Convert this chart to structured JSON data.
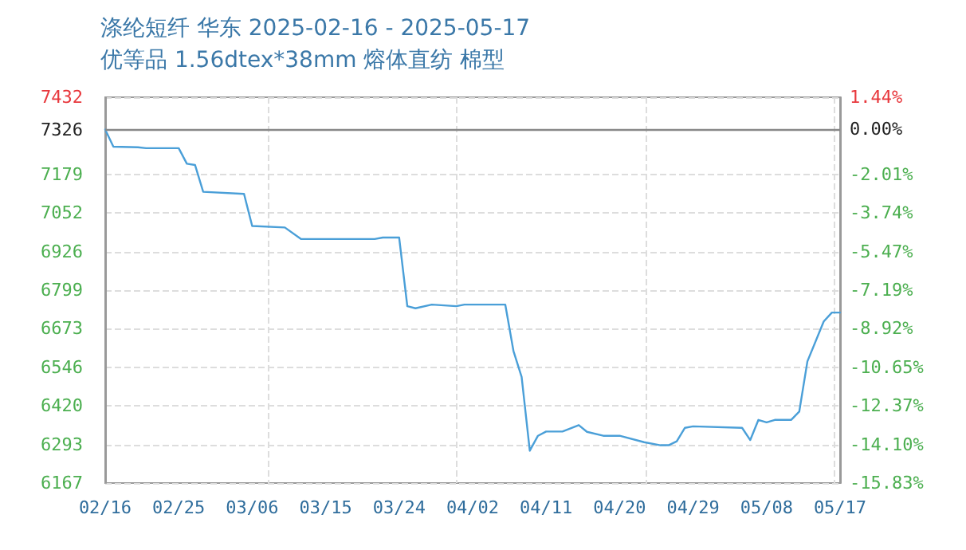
{
  "chart_data": {
    "type": "line",
    "title": "涤纶短纤 华东 2025-02-16 - 2025-05-17",
    "subtitle": "优等品 1.56dtex*38mm 熔体直纺 棉型",
    "x": [
      "--02-16",
      "--02-17",
      "--02-20",
      "--02-21",
      "--02-25",
      "--02-26",
      "--02-27",
      "--02-28",
      "--03-05",
      "--03-06",
      "--03-10",
      "--03-12",
      "--03-21",
      "--03-22",
      "--03-24",
      "--03-25",
      "--03-26",
      "--03-28",
      "--03-31",
      "--04-01",
      "--04-06",
      "--04-07",
      "--04-08",
      "--04-09",
      "--04-10",
      "--04-11",
      "--04-13",
      "--04-15",
      "--04-16",
      "--04-18",
      "--04-20",
      "--04-23",
      "--04-25",
      "--04-26",
      "--04-27",
      "--04-28",
      "--04-29",
      "--05-05",
      "--05-06",
      "--05-07",
      "--05-08",
      "--05-09",
      "--05-11",
      "--05-12",
      "--05-13",
      "--05-15",
      "--05-16",
      "--05-17"
    ],
    "series": [
      {
        "color": "#4a9fd8",
        "values": [
          7326,
          7270,
          7268,
          7265,
          7265,
          7214,
          7210,
          7122,
          7115,
          7010,
          7005,
          6967,
          6967,
          6972,
          6972,
          6747,
          6740,
          6752,
          6747,
          6752,
          6752,
          6600,
          6515,
          6273,
          6322,
          6336,
          6336,
          6357,
          6335,
          6322,
          6322,
          6301,
          6291,
          6291,
          6304,
          6348,
          6353,
          6348,
          6308,
          6374,
          6366,
          6374,
          6374,
          6401,
          6566,
          6697,
          6726,
          6726
        ]
      }
    ],
    "xlim": [
      "--02-16",
      "--05-17"
    ],
    "xticks": [
      {
        "value": "--02-16",
        "label": "02/16"
      },
      {
        "value": "--02-25",
        "label": "02/25"
      },
      {
        "value": "--03-06",
        "label": "03/06"
      },
      {
        "value": "--03-15",
        "label": "03/15"
      },
      {
        "value": "--03-24",
        "label": "03/24"
      },
      {
        "value": "--04-02",
        "label": "04/02"
      },
      {
        "value": "--04-11",
        "label": "04/11"
      },
      {
        "value": "--04-20",
        "label": "04/20"
      },
      {
        "value": "--04-29",
        "label": "04/29"
      },
      {
        "value": "--05-08",
        "label": "05/08"
      },
      {
        "value": "--05-17",
        "label": "05/17"
      }
    ],
    "ylim": [
      6167,
      7432
    ],
    "yticks": [
      6167,
      6293,
      6420,
      6546,
      6673,
      6799,
      6926,
      7052,
      7179,
      7326,
      7432
    ],
    "y2lim": [
      -15.83,
      1.44
    ],
    "y2ticks": [
      {
        "value": -15.83,
        "label": "-15.83%"
      },
      {
        "value": -14.1,
        "label": "-14.10%"
      },
      {
        "value": -12.37,
        "label": "-12.37%"
      },
      {
        "value": -10.65,
        "label": "-10.65%"
      },
      {
        "value": -8.92,
        "label": "-8.92%"
      },
      {
        "value": -7.19,
        "label": "-7.19%"
      },
      {
        "value": -5.47,
        "label": "-5.47%"
      },
      {
        "value": -3.74,
        "label": "-3.74%"
      },
      {
        "value": -2.01,
        "label": "-2.01%"
      },
      {
        "value": 0,
        "label": "0.00%"
      },
      {
        "value": 1.44,
        "label": "1.44%"
      }
    ],
    "ref_lines": [
      {
        "axis": "y",
        "value": 7326,
        "color": "#888888"
      }
    ],
    "grid": true,
    "marker": "none",
    "line_style": "solid"
  }
}
